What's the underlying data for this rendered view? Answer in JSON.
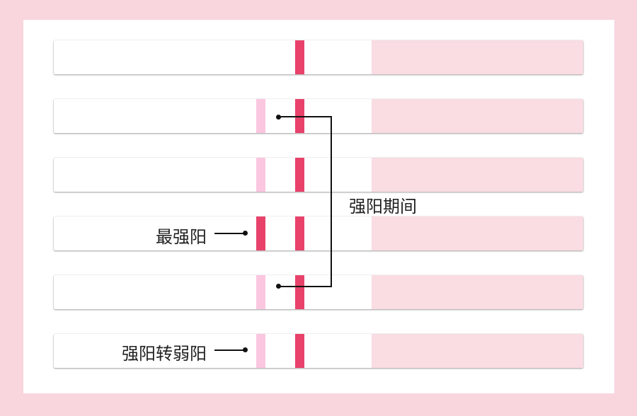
{
  "colors": {
    "background": "#f9d5de",
    "control_line": "#e8426b",
    "strong_test_line": "#e8426b",
    "faint_test_line": "#fbc6e0",
    "pad": "#fadce3"
  },
  "strips": [
    {
      "test_line": "none"
    },
    {
      "test_line": "faint"
    },
    {
      "test_line": "faint"
    },
    {
      "test_line": "strong"
    },
    {
      "test_line": "faint"
    },
    {
      "test_line": "faint"
    }
  ],
  "labels": {
    "strongest": "最强阳",
    "strong_period": "强阳期间",
    "strong_to_weak": "强阳转弱阳"
  }
}
